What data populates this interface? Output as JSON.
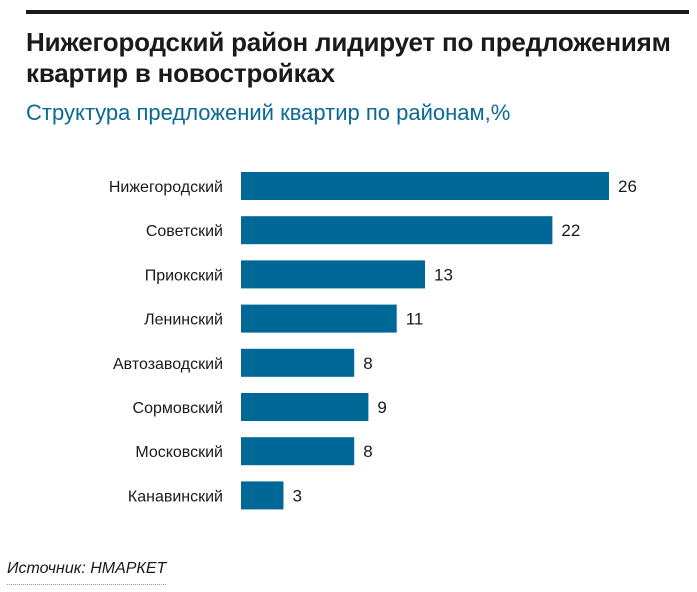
{
  "title": "Нижегородский район лидирует по предложениям квартир в новостройках",
  "subtitle": "Структура предложений квартир по районам,%",
  "source": "Источник: НМАРКЕТ",
  "colors": {
    "bar": "#006896",
    "text": "#1a1a1a",
    "subtitle": "#0a6a94"
  },
  "chart_data": {
    "type": "bar",
    "orientation": "horizontal",
    "categories": [
      "Нижегородский",
      "Советский",
      "Приокский",
      "Ленинский",
      "Автозаводский",
      "Сормовский",
      "Московский",
      "Канавинский"
    ],
    "values": [
      26,
      22,
      13,
      11,
      8,
      9,
      8,
      3
    ],
    "data_labels": true,
    "grid": false,
    "xlim": [
      0,
      26
    ]
  }
}
